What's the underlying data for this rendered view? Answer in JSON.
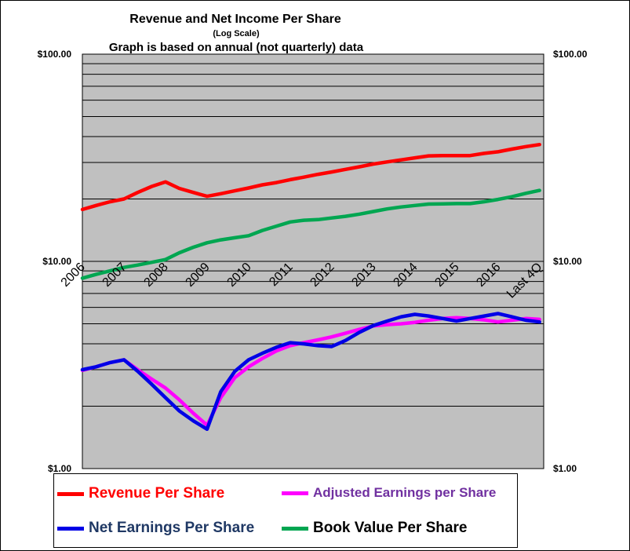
{
  "chart_data": {
    "type": "line",
    "title": "Revenue  and  Net Income  Per Share",
    "subtitle": "(Log Scale)",
    "note": "Graph is based  on annual  (not quarterly) data",
    "y_scale": "log",
    "ylim": [
      1,
      100
    ],
    "y_ticks": [
      "$1.00",
      "$10.00",
      "$100.00"
    ],
    "categories": [
      "2006",
      "2007",
      "2008",
      "2009",
      "2010",
      "2011",
      "2012",
      "2013",
      "2014",
      "2015",
      "2016",
      "Last 4Q"
    ],
    "grid": "horizontal",
    "legend_position": "bottom",
    "series": [
      {
        "name": "Revenue Per Share",
        "color": "#ff0000",
        "x": [
          0,
          0.33,
          0.67,
          1,
          1.33,
          1.67,
          2,
          2.33,
          2.67,
          3,
          3.33,
          3.67,
          4,
          4.33,
          4.67,
          5,
          5.33,
          5.67,
          6,
          6.33,
          6.67,
          7,
          7.33,
          7.67,
          8,
          8.33,
          8.67,
          9,
          9.33,
          9.67,
          10,
          10.33,
          10.67,
          11
        ],
        "values": [
          17.8,
          18.6,
          19.4,
          20.0,
          21.5,
          23.0,
          24.2,
          22.5,
          21.5,
          20.6,
          21.2,
          21.9,
          22.6,
          23.4,
          24.0,
          24.8,
          25.5,
          26.3,
          27.0,
          27.8,
          28.6,
          29.5,
          30.2,
          30.9,
          31.6,
          32.3,
          32.4,
          32.4,
          32.4,
          33.2,
          33.8,
          34.8,
          35.8,
          36.6
        ]
      },
      {
        "name": "Adjusted Earnings per Share",
        "color": "#ff00ff",
        "x": [
          0,
          0.33,
          0.67,
          1,
          1.33,
          1.67,
          2,
          2.33,
          2.67,
          3,
          3.33,
          3.67,
          4,
          4.33,
          4.67,
          5,
          5.33,
          5.67,
          6,
          6.33,
          6.67,
          7,
          7.33,
          7.67,
          8,
          8.33,
          8.67,
          9,
          9.33,
          9.67,
          10,
          10.33,
          10.67,
          11
        ],
        "values": [
          2.98,
          3.1,
          3.25,
          3.35,
          3.0,
          2.7,
          2.45,
          2.15,
          1.85,
          1.62,
          2.2,
          2.75,
          3.1,
          3.4,
          3.7,
          3.92,
          4.05,
          4.18,
          4.32,
          4.5,
          4.7,
          4.88,
          4.95,
          5.0,
          5.08,
          5.2,
          5.3,
          5.35,
          5.3,
          5.22,
          5.1,
          5.2,
          5.3,
          5.25
        ]
      },
      {
        "name": "Net Earnings Per Share",
        "color": "#0000e6",
        "x": [
          0,
          0.33,
          0.67,
          1,
          1.33,
          1.67,
          2,
          2.33,
          2.67,
          3,
          3.33,
          3.67,
          4,
          4.33,
          4.67,
          5,
          5.33,
          5.67,
          6,
          6.33,
          6.67,
          7,
          7.33,
          7.67,
          8,
          8.33,
          8.67,
          9,
          9.33,
          9.67,
          10,
          10.33,
          10.67,
          11
        ],
        "values": [
          3.0,
          3.1,
          3.25,
          3.35,
          2.95,
          2.55,
          2.2,
          1.9,
          1.7,
          1.55,
          2.35,
          2.95,
          3.35,
          3.6,
          3.85,
          4.05,
          4.0,
          3.92,
          3.88,
          4.15,
          4.55,
          4.9,
          5.15,
          5.4,
          5.55,
          5.45,
          5.3,
          5.15,
          5.3,
          5.45,
          5.6,
          5.4,
          5.2,
          5.1
        ]
      },
      {
        "name": "Book Value Per Share",
        "color": "#00a651",
        "x": [
          0,
          0.33,
          0.67,
          1,
          1.33,
          1.67,
          2,
          2.33,
          2.67,
          3,
          3.33,
          3.67,
          4,
          4.33,
          4.67,
          5,
          5.33,
          5.67,
          6,
          6.33,
          6.67,
          7,
          7.33,
          7.67,
          8,
          8.33,
          8.67,
          9,
          9.33,
          9.67,
          10,
          10.33,
          10.67,
          11
        ],
        "values": [
          8.3,
          8.65,
          9.0,
          9.35,
          9.6,
          9.9,
          10.2,
          11.0,
          11.7,
          12.3,
          12.7,
          13.0,
          13.3,
          14.1,
          14.8,
          15.5,
          15.8,
          15.9,
          16.2,
          16.5,
          16.9,
          17.4,
          17.9,
          18.3,
          18.6,
          18.9,
          18.95,
          19.0,
          19.0,
          19.4,
          19.9,
          20.5,
          21.3,
          22.0
        ]
      }
    ]
  }
}
